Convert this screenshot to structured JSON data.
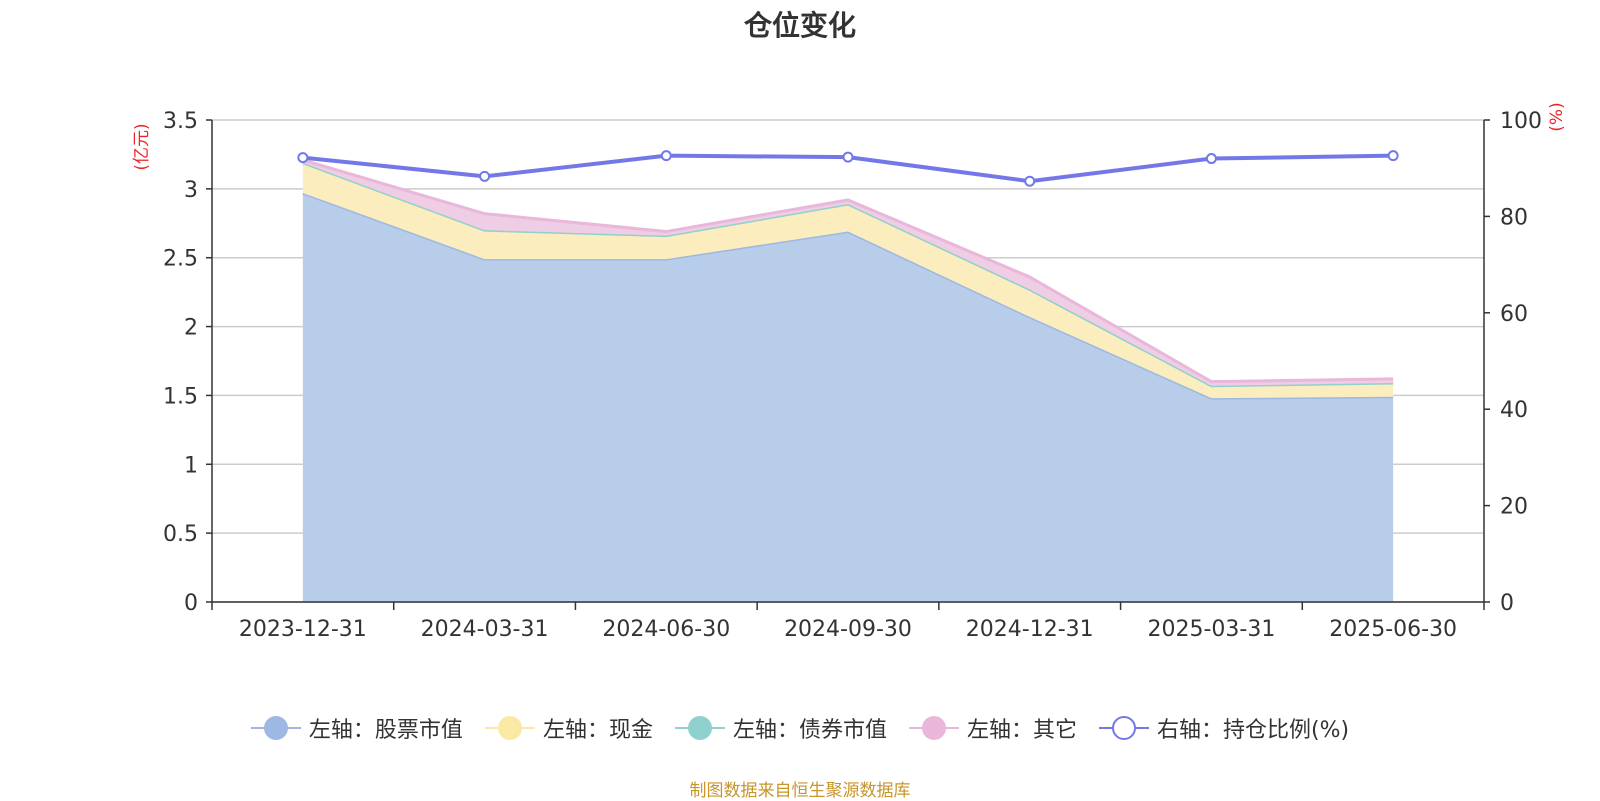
{
  "chart_data": {
    "type": "area",
    "title": "仓位变化",
    "categories": [
      "2023-12-31",
      "2024-03-31",
      "2024-06-30",
      "2024-09-30",
      "2024-12-31",
      "2025-03-31",
      "2025-06-30"
    ],
    "left_axis": {
      "label": "(亿元)",
      "ylim": [
        0,
        3.5
      ],
      "ticks": [
        "0",
        "0.5",
        "1",
        "1.5",
        "2",
        "2.5",
        "3",
        "3.5"
      ]
    },
    "right_axis": {
      "label": "(%)",
      "ylim": [
        0,
        100
      ],
      "ticks": [
        "0",
        "20",
        "40",
        "60",
        "80",
        "100"
      ]
    },
    "series": [
      {
        "name": "左轴：股票市值",
        "axis": "left",
        "kind": "stacked-area",
        "color": "#9db8e2",
        "fill": "#b8cdea",
        "values": [
          2.97,
          2.49,
          2.49,
          2.69,
          2.07,
          1.48,
          1.49
        ]
      },
      {
        "name": "左轴：现金",
        "axis": "left",
        "kind": "stacked-area",
        "color": "#fae9a5",
        "fill": "#fbedbd",
        "values": [
          0.22,
          0.21,
          0.17,
          0.2,
          0.2,
          0.09,
          0.1
        ]
      },
      {
        "name": "左轴：债券市值",
        "axis": "left",
        "kind": "stacked-area",
        "color": "#8fd1cf",
        "fill": "#b4e0de",
        "values": [
          0,
          0,
          0,
          0,
          0,
          0,
          0
        ]
      },
      {
        "name": "左轴：其它",
        "axis": "left",
        "kind": "stacked-area",
        "color": "#e8b7d9",
        "fill": "#efcde4",
        "values": [
          0.02,
          0.12,
          0.03,
          0.03,
          0.09,
          0.03,
          0.03
        ]
      },
      {
        "name": "右轴：持仓比例(%)",
        "axis": "right",
        "kind": "line",
        "color": "#7378e8",
        "values": [
          92.2,
          88.3,
          92.6,
          92.3,
          87.3,
          92.0,
          92.6
        ]
      }
    ],
    "grid": true,
    "legend_position": "bottom"
  },
  "source_note": "制图数据来自恒生聚源数据库"
}
